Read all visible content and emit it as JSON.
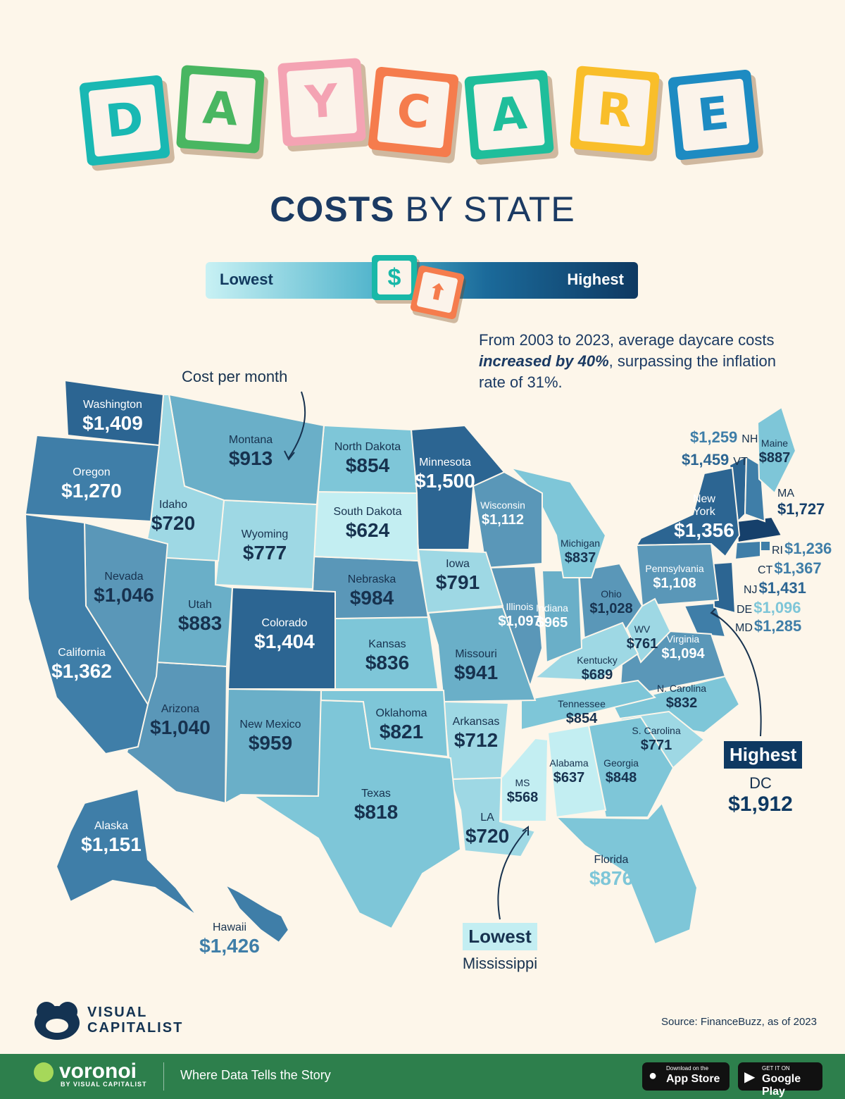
{
  "title": {
    "letters": [
      {
        "char": "D",
        "color": "#19b8b3",
        "side": "#1a9f9b"
      },
      {
        "char": "A",
        "color": "#49b661",
        "side": "#e49a3c"
      },
      {
        "char": "Y",
        "color": "#f4a3b3",
        "side": "#e49a3c"
      },
      {
        "char": "C",
        "color": "#f57c4d",
        "side": "#e49a3c"
      },
      {
        "char": "A",
        "color": "#1fbe9b",
        "side": "#e49a3c"
      },
      {
        "char": "R",
        "color": "#f9be2a",
        "side": "#e49a3c"
      },
      {
        "char": "E",
        "color": "#1d8bc2",
        "side": "#e49a3c"
      }
    ],
    "subtitle_bold": "COSTS",
    "subtitle_rest": " BY STATE"
  },
  "legend": {
    "low_label": "Lowest",
    "high_label": "Highest",
    "dollar_glyph": "$",
    "arrow_glyph": "⬆"
  },
  "note": {
    "text_before": "From 2003 to 2023, average daycare costs ",
    "text_emph": "increased by 40%",
    "text_after": ", surpassing the inflation rate of 31%."
  },
  "cost_per_month_label": "Cost per month",
  "colors": {
    "tier1": "#c3eef2",
    "tier2": "#9ed8e4",
    "tier3": "#7ec6d8",
    "tier4": "#6aafc8",
    "tier5": "#5a97b8",
    "tier6": "#3f7ea8",
    "tier7": "#2c6592",
    "tier8": "#16406b"
  },
  "states": [
    {
      "name": "Washington",
      "value": "$1,409"
    },
    {
      "name": "Oregon",
      "value": "$1,270"
    },
    {
      "name": "California",
      "value": "$1,362"
    },
    {
      "name": "Nevada",
      "value": "$1,046"
    },
    {
      "name": "Idaho",
      "value": "$720"
    },
    {
      "name": "Montana",
      "value": "$913"
    },
    {
      "name": "Wyoming",
      "value": "$777"
    },
    {
      "name": "Utah",
      "value": "$883"
    },
    {
      "name": "Arizona",
      "value": "$1,040"
    },
    {
      "name": "Colorado",
      "value": "$1,404"
    },
    {
      "name": "New Mexico",
      "value": "$959"
    },
    {
      "name": "North Dakota",
      "value": "$854"
    },
    {
      "name": "South Dakota",
      "value": "$624"
    },
    {
      "name": "Nebraska",
      "value": "$984"
    },
    {
      "name": "Kansas",
      "value": "$836"
    },
    {
      "name": "Oklahoma",
      "value": "$821"
    },
    {
      "name": "Texas",
      "value": "$818"
    },
    {
      "name": "Minnesota",
      "value": "$1,500"
    },
    {
      "name": "Iowa",
      "value": "$791"
    },
    {
      "name": "Missouri",
      "value": "$941"
    },
    {
      "name": "Arkansas",
      "value": "$712"
    },
    {
      "name": "LA",
      "value": "$720"
    },
    {
      "name": "Wisconsin",
      "value": "$1,112"
    },
    {
      "name": "Illinois",
      "value": "$1,097"
    },
    {
      "name": "MS",
      "value": "$568"
    },
    {
      "name": "Michigan",
      "value": "$837"
    },
    {
      "name": "Indiana",
      "value": "$965"
    },
    {
      "name": "Kentucky",
      "value": "$689"
    },
    {
      "name": "Tennessee",
      "value": "$854"
    },
    {
      "name": "Alabama",
      "value": "$637"
    },
    {
      "name": "Ohio",
      "value": "$1,028"
    },
    {
      "name": "WV",
      "value": "$761"
    },
    {
      "name": "Georgia",
      "value": "$848"
    },
    {
      "name": "Florida",
      "value": "$876"
    },
    {
      "name": "S. Carolina",
      "value": "$771"
    },
    {
      "name": "N. Carolina",
      "value": "$832"
    },
    {
      "name": "Virginia",
      "value": "$1,094"
    },
    {
      "name": "Pennsylvania",
      "value": "$1,108"
    },
    {
      "name": "New York",
      "value": "$1,356"
    },
    {
      "name": "Maine",
      "value": "$887"
    },
    {
      "name": "Alaska",
      "value": "$1,151"
    },
    {
      "name": "Hawaii",
      "value": "$1,426"
    }
  ],
  "northeast": [
    {
      "abbr": "NH",
      "value": "$1,259"
    },
    {
      "abbr": "VT",
      "value": "$1,459"
    },
    {
      "abbr": "MA",
      "value": "$1,727"
    },
    {
      "abbr": "RI",
      "value": "$1,236"
    },
    {
      "abbr": "CT",
      "value": "$1,367"
    },
    {
      "abbr": "NJ",
      "value": "$1,431"
    },
    {
      "abbr": "DE",
      "value": "$1,096"
    },
    {
      "abbr": "MD",
      "value": "$1,285"
    }
  ],
  "highest": {
    "tag": "Highest",
    "name": "DC",
    "value": "$1,912"
  },
  "lowest": {
    "tag": "Lowest",
    "name": "Mississippi"
  },
  "branding": {
    "vc_line1": "VISUAL",
    "vc_line2": "CAPITALIST",
    "source": "Source: FinanceBuzz, as of 2023",
    "voronoi": "voronoi",
    "voronoi_sub": "BY VISUAL CAPITALIST",
    "tagline": "Where Data Tells the Story",
    "appstore_small": "Download on the",
    "appstore_big": "App Store",
    "google_small": "GET IT ON",
    "google_big": "Google Play"
  }
}
